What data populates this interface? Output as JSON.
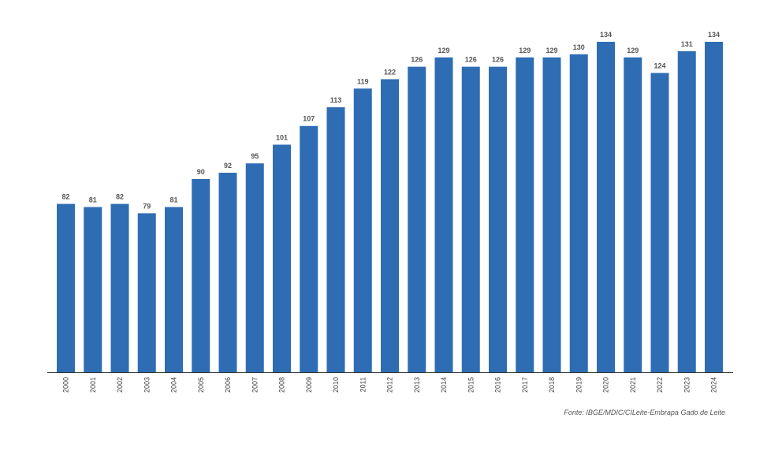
{
  "chart_data": {
    "type": "bar",
    "title": "",
    "xlabel": "",
    "ylabel": "",
    "categories": [
      "2000",
      "2001",
      "2002",
      "2003",
      "2004",
      "2005",
      "2006",
      "2007",
      "2008",
      "2009",
      "2010",
      "2011",
      "2012",
      "2013",
      "2014",
      "2015",
      "2016",
      "2017",
      "2018",
      "2019",
      "2020",
      "2021",
      "2022",
      "2023",
      "2024"
    ],
    "values": [
      82,
      81,
      82,
      79,
      81,
      90,
      92,
      95,
      101,
      107,
      113,
      119,
      122,
      126,
      129,
      126,
      126,
      129,
      129,
      130,
      134,
      129,
      124,
      131,
      134
    ],
    "ylim": [
      28,
      140
    ],
    "grid": false,
    "bar_color": "#2e6db4",
    "source": "Fonte: IBGE/MDIC/CILeite-Embrapa Gado de Leite"
  }
}
